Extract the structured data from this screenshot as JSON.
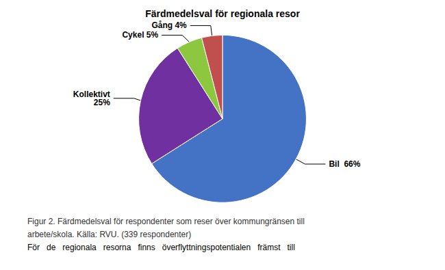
{
  "chart_data": {
    "type": "pie",
    "title": "Färdmedelsval för regionala resor",
    "values": [
      66,
      25,
      5,
      4
    ],
    "value_labels": [
      "Bil  66%",
      "Kollektivt\n25%",
      "Cykel 5%",
      "Gång 4%"
    ],
    "colors": [
      "#4472C4",
      "#7030A0",
      "#8DC63F",
      "#C0504D"
    ],
    "data_labels": true,
    "annotations": [
      "Figur 2. Färdmedelsval för respondenter som reser över kommungränsen till",
      "arbete/skola. Källa: RVU. (339 respondenter)",
      "För   de   regionala   resorna   finns   överflyttningspotentialen   främst   till"
    ]
  }
}
